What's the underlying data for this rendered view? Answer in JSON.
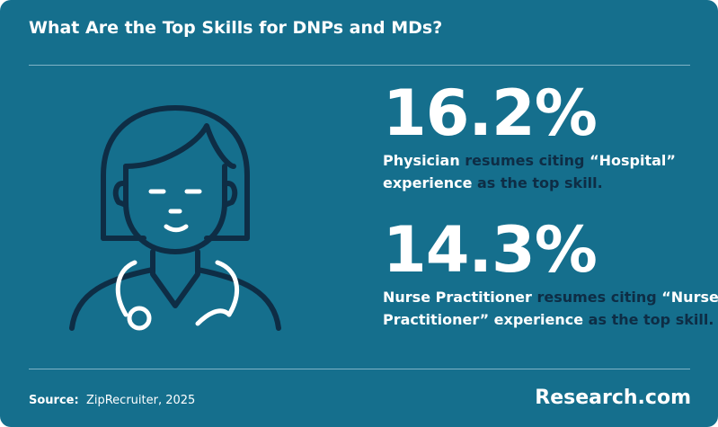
{
  "header": {
    "title": "What Are the Top Skills for DNPs and MDs?"
  },
  "stats": [
    {
      "value": "16.2%",
      "lines": [
        [
          {
            "text": "Physician",
            "highlight": true
          },
          {
            "text": " resumes citing ",
            "highlight": false
          },
          {
            "text": "“Hospital”",
            "highlight": true
          }
        ],
        [
          {
            "text": "experience",
            "highlight": true
          },
          {
            "text": " as the top skill.",
            "highlight": false
          }
        ]
      ]
    },
    {
      "value": "14.3%",
      "lines": [
        [
          {
            "text": "Nurse Practitioner",
            "highlight": true
          },
          {
            "text": " resumes citing ",
            "highlight": false
          },
          {
            "text": "“Nurse",
            "highlight": true
          }
        ],
        [
          {
            "text": "Practitioner” experience",
            "highlight": true
          },
          {
            "text": " as the top skill.",
            "highlight": false
          }
        ]
      ]
    }
  ],
  "footer": {
    "source_label": "Source:",
    "source": "ZipRecruiter, 2025",
    "brand": "Research.com"
  }
}
